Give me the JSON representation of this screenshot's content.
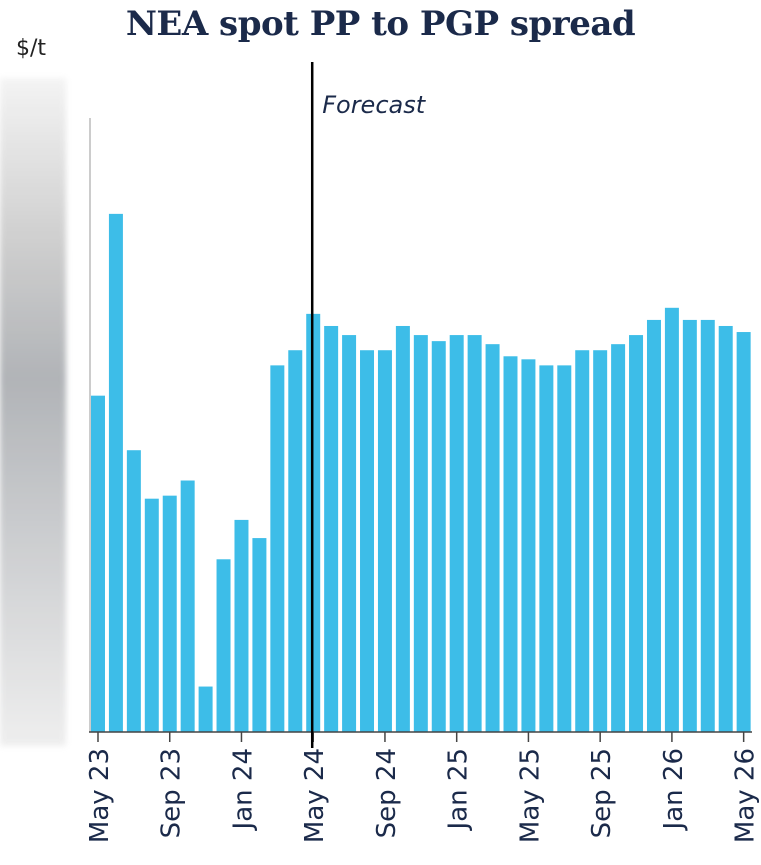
{
  "chart_data": {
    "type": "bar",
    "title": "NEA spot PP to PGP spread",
    "ylabel": "$/t",
    "annotation": "Forecast",
    "forecast_start": "May 24",
    "bar_color": "#3dbde8",
    "ylim": [
      0,
      100
    ],
    "grid": false,
    "categories": [
      "May 23",
      "Jun 23",
      "Jul 23",
      "Aug 23",
      "Sep 23",
      "Oct 23",
      "Nov 23",
      "Dec 23",
      "Jan 24",
      "Feb 24",
      "Mar 24",
      "Apr 24",
      "May 24",
      "Jun 24",
      "Jul 24",
      "Aug 24",
      "Sep 24",
      "Oct 24",
      "Nov 24",
      "Dec 24",
      "Jan 25",
      "Feb 25",
      "Mar 25",
      "Apr 25",
      "May 25",
      "Jun 25",
      "Jul 25",
      "Aug 25",
      "Sep 25",
      "Oct 25",
      "Nov 25",
      "Dec 25",
      "Jan 26",
      "Feb 26",
      "Mar 26",
      "Apr 26",
      "May 26"
    ],
    "values": [
      55.5,
      85.5,
      46.5,
      38.5,
      39,
      41.5,
      7.5,
      28.5,
      35,
      32,
      60.5,
      63,
      69,
      67,
      65.5,
      63,
      63,
      67,
      65.5,
      64.5,
      65.5,
      65.5,
      64,
      62,
      61.5,
      60.5,
      60.5,
      63,
      63,
      64,
      65.5,
      68,
      70,
      68,
      68,
      67,
      66
    ],
    "tick_labels": [
      "May 23",
      "Sep 23",
      "Jan 24",
      "May 24",
      "Sep 24",
      "Jan 25",
      "May 25",
      "Sep 25",
      "Jan 26",
      "May 26"
    ],
    "tick_indices": [
      0,
      4,
      8,
      12,
      16,
      20,
      24,
      28,
      32,
      36
    ]
  }
}
